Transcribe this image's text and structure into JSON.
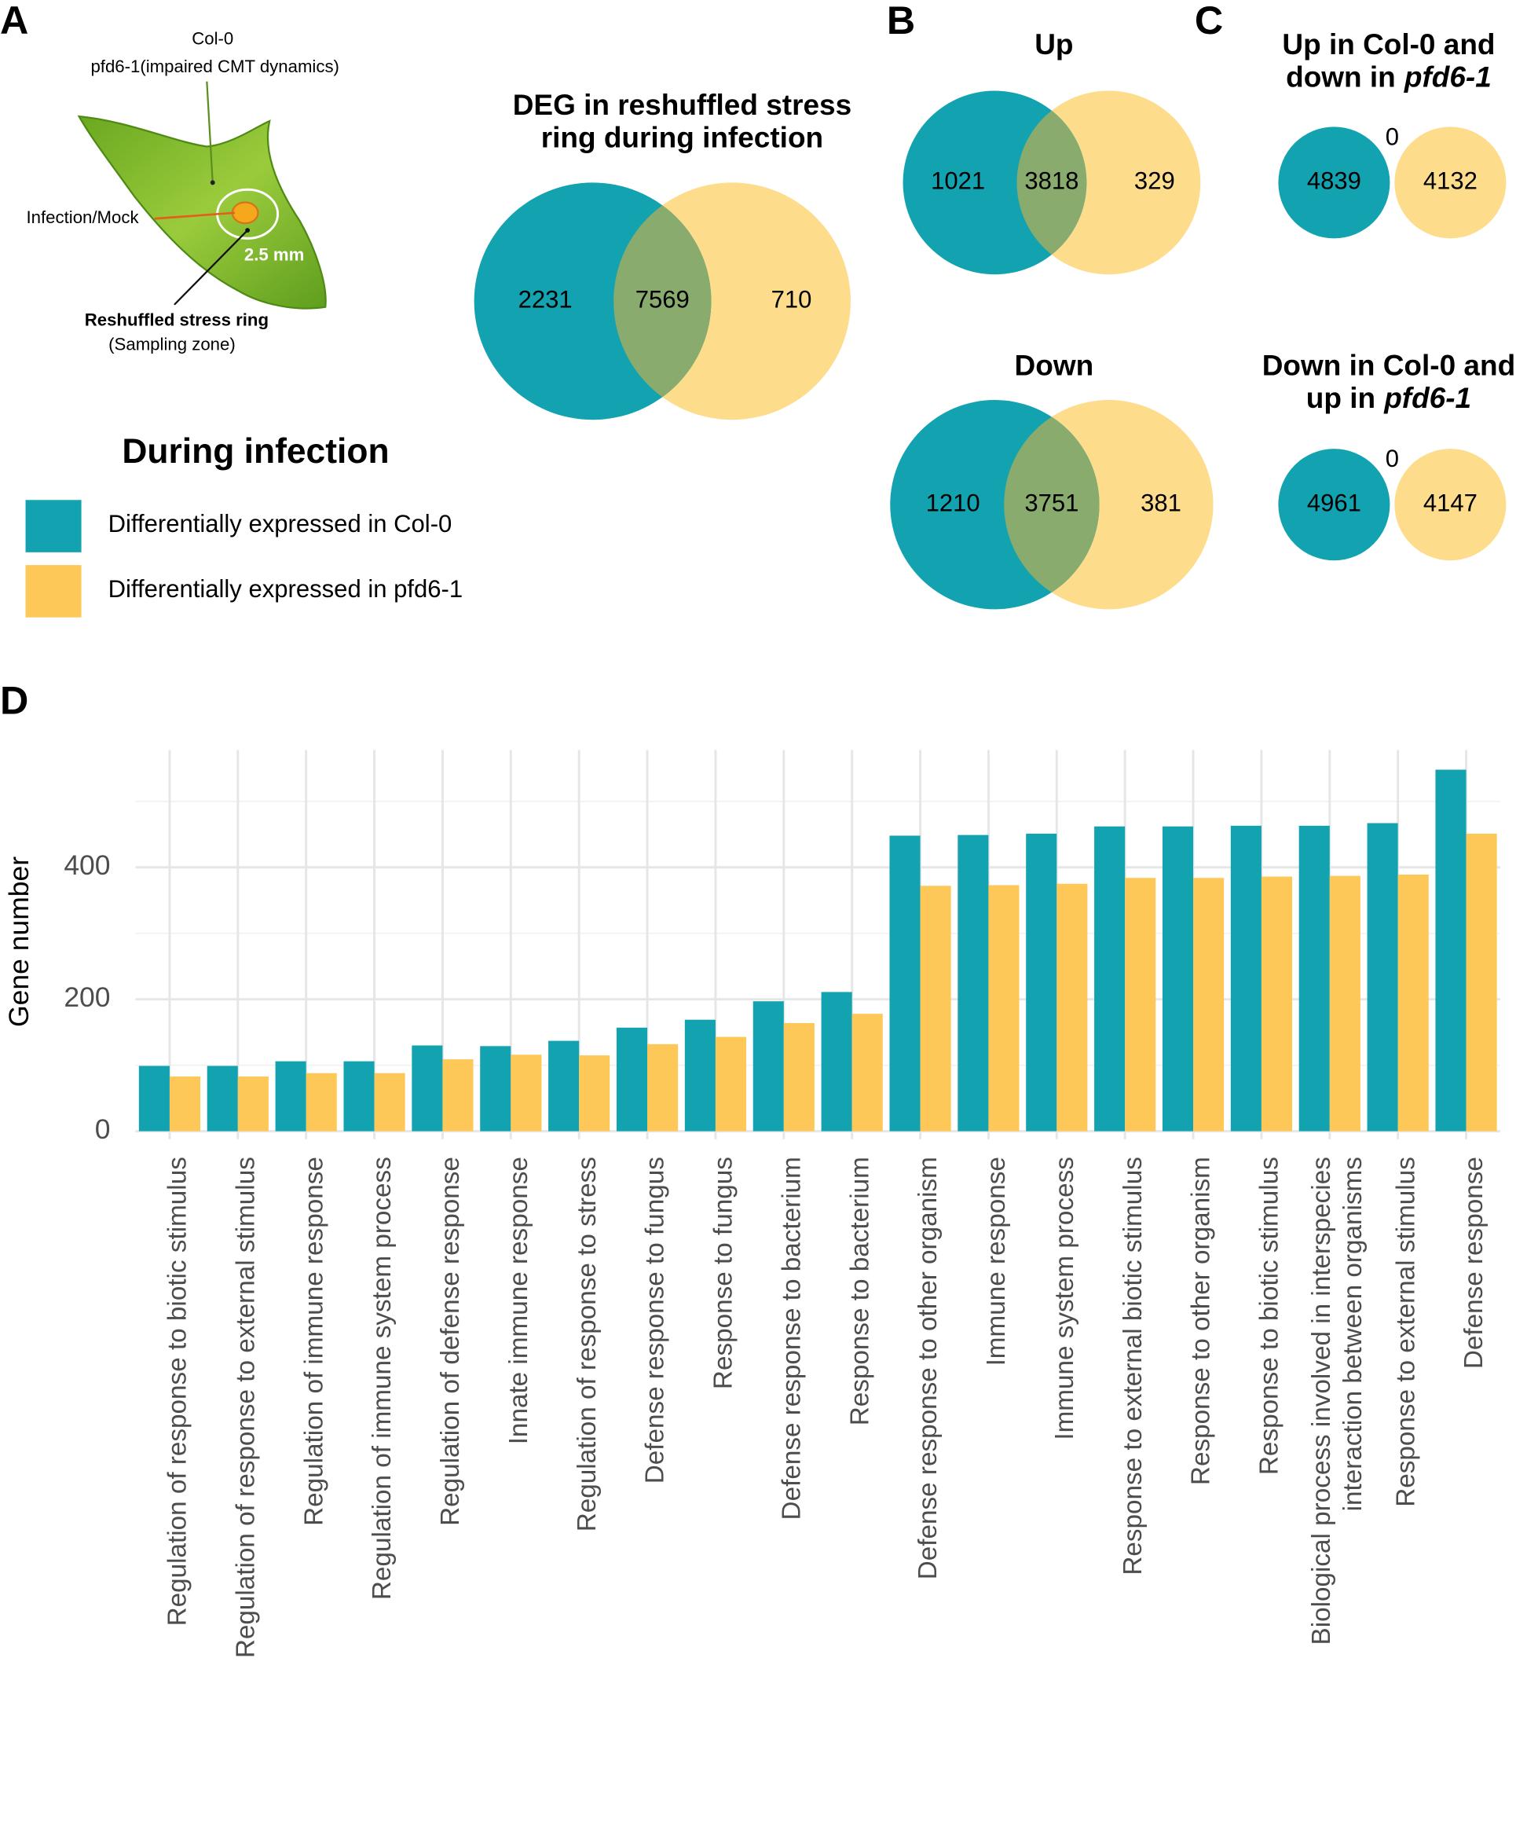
{
  "panels": [
    "A",
    "B",
    "C",
    "D"
  ],
  "leaf": {
    "col0": "Col-0",
    "pfd6": "pfd6-1(impaired CMT dynamics)",
    "infection": "Infection/Mock",
    "distance": "2.5 mm",
    "ring": "Reshuffled stress ring",
    "zone": "(Sampling zone)"
  },
  "chart_data": [
    {
      "type": "venn",
      "title_lines": [
        "DEG in reshuffled stress",
        "ring during infection"
      ],
      "values": [
        2231,
        7569,
        710
      ],
      "colors": [
        "#13a3b0",
        "#fddc8c"
      ],
      "overlap_color": "#89ab6d"
    },
    {
      "type": "venn",
      "title_lines": [
        "Up"
      ],
      "values": [
        1021,
        3818,
        329
      ],
      "colors": [
        "#13a3b0",
        "#fddc8c"
      ],
      "overlap_color": "#89ab6d"
    },
    {
      "type": "venn",
      "title_lines": [
        "Down"
      ],
      "values": [
        1210,
        3751,
        381
      ],
      "colors": [
        "#13a3b0",
        "#fddc8c"
      ],
      "overlap_color": "#89ab6d"
    },
    {
      "type": "venn",
      "title_lines": [
        "Up in Col-0 and",
        "down in"
      ],
      "title_emphasis": "pfd6-1",
      "values": [
        4839,
        0,
        4132
      ],
      "colors": [
        "#13a3b0",
        "#fddc8c"
      ],
      "disjoint": true
    },
    {
      "type": "venn",
      "title_lines": [
        "Down in Col-0 and",
        "up in"
      ],
      "title_emphasis": "pfd6-1",
      "values": [
        4961,
        0,
        4147
      ],
      "colors": [
        "#13a3b0",
        "#fddc8c"
      ],
      "disjoint": true
    },
    {
      "type": "bar",
      "ylabel": "Gene number",
      "legend_title": "During infection",
      "categories": [
        "Regulation of response to biotic stimulus",
        "Regulation of response to external stimulus",
        "Regulation of immune response",
        "Regulation of immune system process",
        "Regulation of defense response",
        "Innate immune response",
        "Regulation of response to stress",
        "Defense response to fungus",
        "Response to fungus",
        "Defense response to bacterium",
        "Response to bacterium",
        "Defense response to other organism",
        "Immune response",
        "Immune system process",
        "Response to external biotic stimulus",
        "Response to other organism",
        "Response to biotic stimulus",
        "Biological process involved in interspecies\ninteraction between organisms",
        "Response to external stimulus",
        "Defense response"
      ],
      "series": [
        {
          "name": "Differentially expressed in Col-0",
          "color": "#13a3b0",
          "values": [
            99,
            99,
            106,
            106,
            130,
            129,
            137,
            157,
            169,
            197,
            211,
            448,
            449,
            451,
            462,
            462,
            463,
            463,
            467,
            548
          ]
        },
        {
          "name": "Differentially expressed in pfd6-1",
          "color": "#fec859",
          "values": [
            83,
            83,
            88,
            88,
            109,
            116,
            115,
            132,
            143,
            164,
            178,
            372,
            373,
            375,
            384,
            384,
            386,
            387,
            389,
            451
          ]
        }
      ],
      "ylim": [
        -12,
        578
      ],
      "yticks": [
        0,
        200,
        400
      ],
      "minor_grid": [
        100,
        300,
        500
      ],
      "grid": true
    }
  ]
}
